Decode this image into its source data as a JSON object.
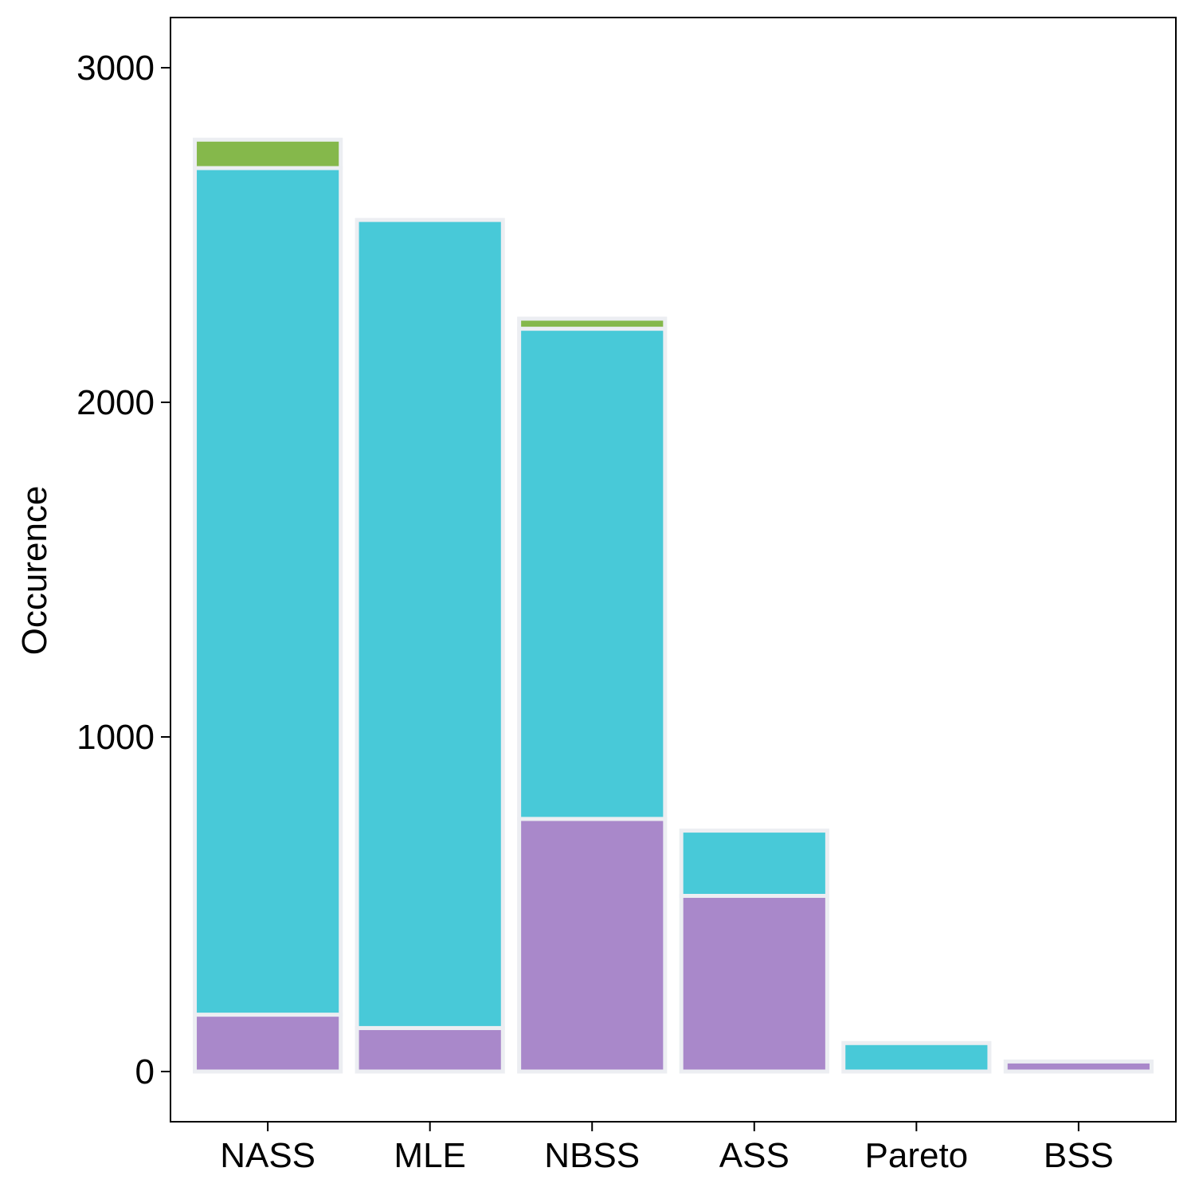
{
  "chart_data": {
    "type": "bar",
    "stacked": true,
    "title": "",
    "xlabel": "",
    "ylabel": "Occurence",
    "categories": [
      "NASS",
      "MLE",
      "NBSS",
      "ASS",
      "Pareto",
      "BSS"
    ],
    "series": [
      {
        "color": "#A988CA",
        "values": [
          170,
          130,
          755,
          525,
          0,
          30
        ]
      },
      {
        "color": "#48C9D8",
        "values": [
          2530,
          2415,
          1465,
          195,
          85,
          0
        ]
      },
      {
        "color": "#85B84B",
        "values": [
          85,
          0,
          30,
          0,
          0,
          0
        ]
      }
    ],
    "ylim": [
      -150,
      3150
    ],
    "yticks": [
      0,
      1000,
      2000,
      3000
    ],
    "grid": false,
    "legend": "none",
    "bar_outline_color": "#ECEEF2",
    "frame_color": "#000000"
  }
}
